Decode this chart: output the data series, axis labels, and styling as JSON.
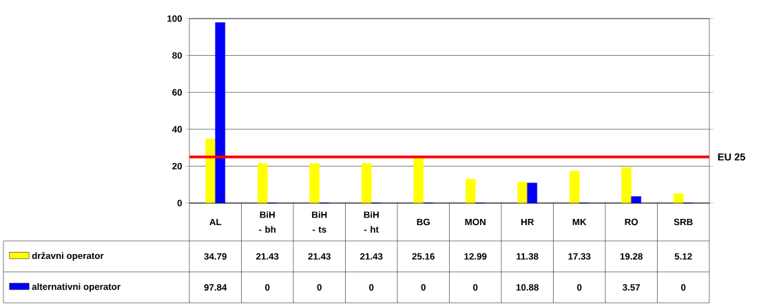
{
  "chart_data": {
    "type": "bar",
    "categories": [
      "AL",
      "BiH - bh",
      "BiH - ts",
      "BiH - ht",
      "BG",
      "MON",
      "HR",
      "MK",
      "RO",
      "SRB"
    ],
    "series": [
      {
        "name": "državni operator",
        "color": "#ffff00",
        "values": [
          34.79,
          21.43,
          21.43,
          21.43,
          25.16,
          12.99,
          11.38,
          17.33,
          19.28,
          5.12
        ],
        "value_labels": [
          "34.79",
          "21.43",
          "21.43",
          "21.43",
          "25.16",
          "12.99",
          "11.38",
          "17.33",
          "19.28",
          "5.12"
        ]
      },
      {
        "name": "alternativni operator",
        "color": "#0000ff",
        "values": [
          97.84,
          0,
          0,
          0,
          0,
          0,
          10.88,
          0,
          3.57,
          0
        ],
        "value_labels": [
          "97.84",
          "0",
          "0",
          "0",
          "0",
          "0",
          "10.88",
          "0",
          "3.57",
          "0"
        ]
      }
    ],
    "ylim": [
      0,
      100
    ],
    "yticks": [
      0,
      20,
      40,
      60,
      80,
      100
    ],
    "grid": "y",
    "legend": "bottom left",
    "ref_lines": [
      {
        "axis": "y",
        "value": 25,
        "label": "EU 25",
        "color": "#ff0000"
      }
    ]
  }
}
